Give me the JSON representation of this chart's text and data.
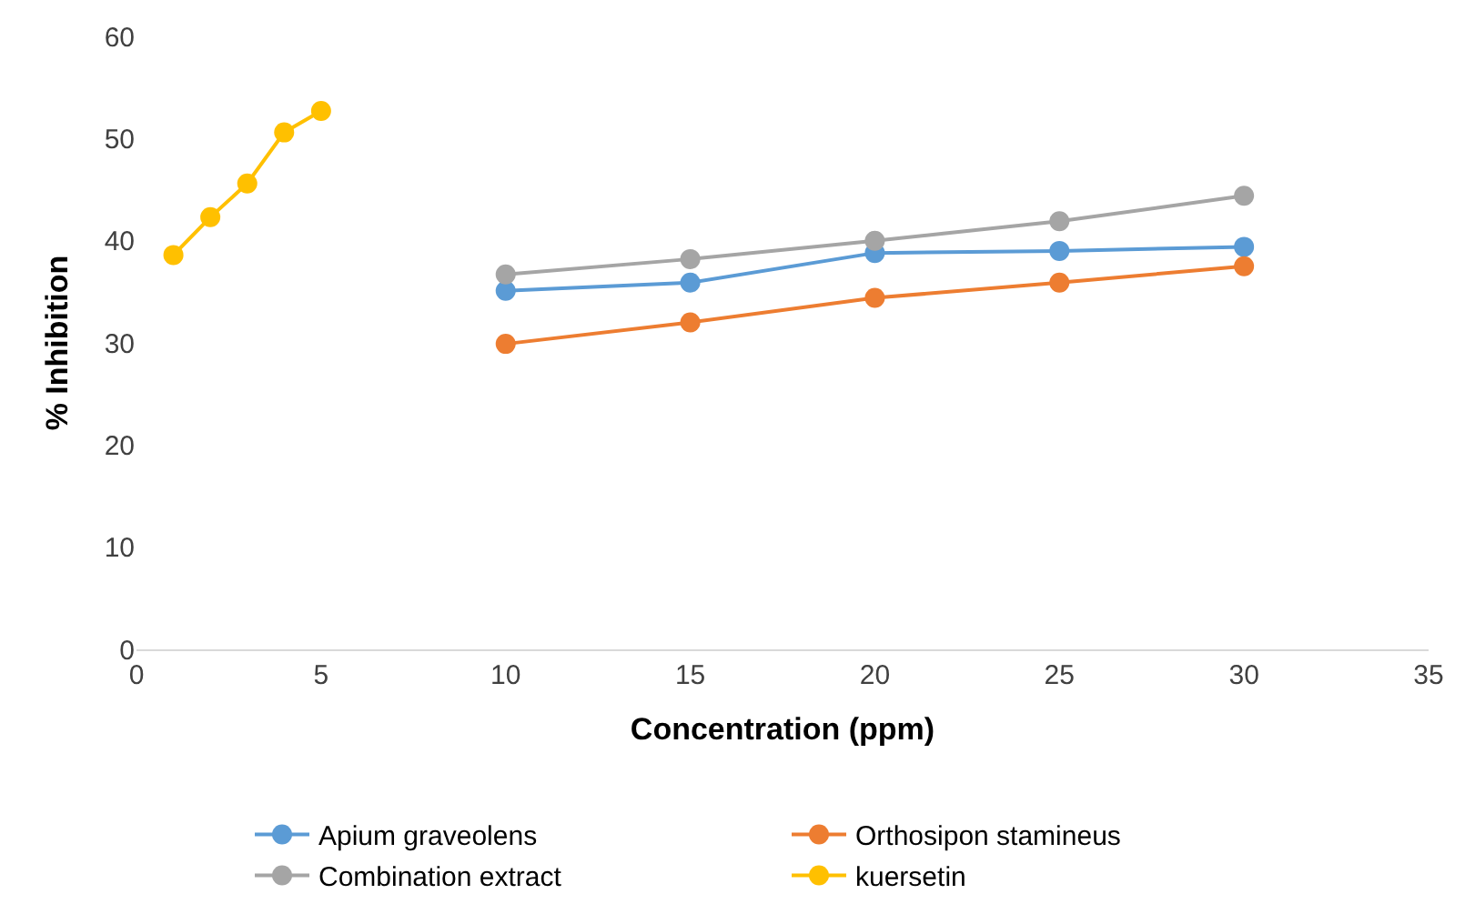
{
  "chart_data": {
    "type": "line",
    "xlabel": "Concentration (ppm)",
    "ylabel": "% Inhibition",
    "xlim": [
      0,
      35
    ],
    "xticks": [
      0,
      5,
      10,
      15,
      20,
      25,
      30,
      35
    ],
    "ylim": [
      0,
      60
    ],
    "yticks": [
      0,
      10,
      20,
      30,
      40,
      50,
      60
    ],
    "legend": "bottom",
    "marker": "circle",
    "line_style": "solid",
    "series": [
      {
        "name": "Apium graveolens",
        "color": "#5b9bd5",
        "x": [
          10,
          15,
          20,
          25,
          30
        ],
        "values": [
          35.1,
          35.9,
          38.8,
          39.0,
          39.4
        ]
      },
      {
        "name": "Orthosipon stamineus",
        "color": "#ed7d31",
        "x": [
          10,
          15,
          20,
          25,
          30
        ],
        "values": [
          29.9,
          32.0,
          34.4,
          35.9,
          37.5
        ]
      },
      {
        "name": "Combination extract",
        "color": "#a5a5a5",
        "x": [
          10,
          15,
          20,
          25,
          30
        ],
        "values": [
          36.7,
          38.2,
          40.0,
          41.9,
          44.4
        ]
      },
      {
        "name": "kuersetin",
        "color": "#ffc000",
        "x": [
          1,
          2,
          3,
          4,
          5
        ],
        "values": [
          38.6,
          42.3,
          45.6,
          50.6,
          52.7
        ]
      }
    ]
  }
}
